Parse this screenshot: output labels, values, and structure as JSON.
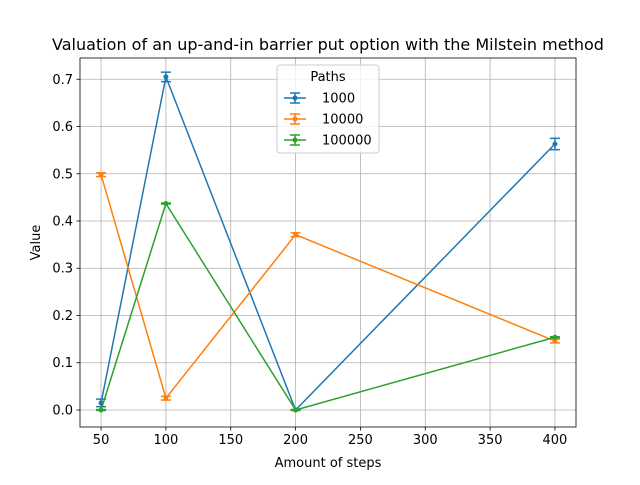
{
  "chart_data": {
    "type": "line",
    "title": "Valuation of an up-and-in barrier put option with the Milstein method",
    "xlabel": "Amount of steps",
    "ylabel": "Value",
    "xlim": [
      33.75,
      416.25
    ],
    "ylim": [
      -0.036,
      0.745
    ],
    "x_ticks": [
      50,
      100,
      150,
      200,
      250,
      300,
      350,
      400
    ],
    "y_ticks": [
      0.0,
      0.1,
      0.2,
      0.3,
      0.4,
      0.5,
      0.6,
      0.7
    ],
    "grid": true,
    "legend": {
      "title": "Paths",
      "placement": "upper-center"
    },
    "x": [
      50,
      100,
      200,
      400
    ],
    "series": [
      {
        "name": "1000",
        "color": "#1f77b4",
        "values": [
          0.015,
          0.705,
          0.0,
          0.563
        ],
        "errors": [
          0.008,
          0.01,
          0.0,
          0.012
        ]
      },
      {
        "name": "10000",
        "color": "#ff7f0e",
        "values": [
          0.498,
          0.025,
          0.371,
          0.146
        ],
        "errors": [
          0.004,
          0.004,
          0.004,
          0.004
        ]
      },
      {
        "name": "100000",
        "color": "#2ca02c",
        "values": [
          0.0,
          0.437,
          0.0,
          0.154
        ],
        "errors": [
          0.001,
          0.001,
          0.001,
          0.001
        ]
      }
    ]
  }
}
